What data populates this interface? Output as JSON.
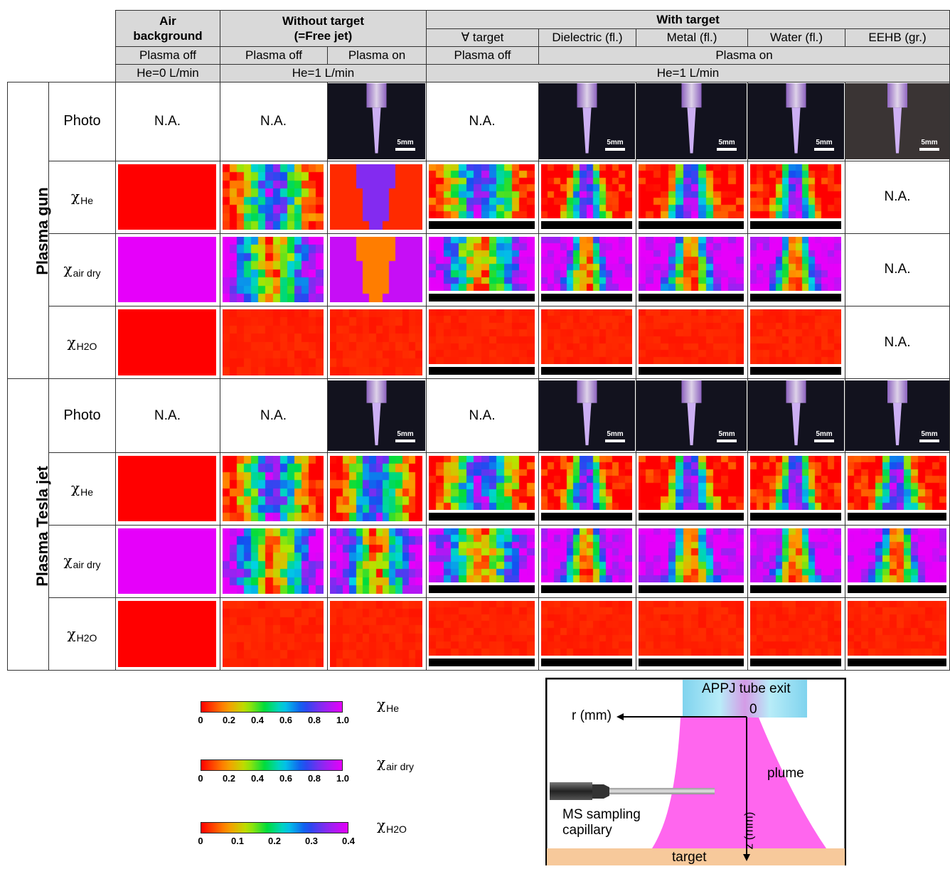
{
  "header": {
    "air_background": "Air\nbackground",
    "without_target": "Without target\n(=Free jet)",
    "with_target": "With target",
    "targets": [
      "∀ target",
      "Dielectric (fl.)",
      "Metal (fl.)",
      "Water (fl.)",
      "EEHB (gr.)"
    ],
    "plasma_off": "Plasma off",
    "plasma_on": "Plasma on",
    "he0": "He=0 L/min",
    "he1": "He=1 L/min"
  },
  "groups": [
    "Plasma gun",
    "Plasma Tesla jet"
  ],
  "row_labels": {
    "photo": "Photo",
    "chi": "χ",
    "he": "He",
    "air": "air dry",
    "h2o": "H2O"
  },
  "na": "N.A.",
  "scale": "5mm",
  "colorbars": [
    {
      "symbol": "χ",
      "sub": "He",
      "ticks": [
        "0",
        "0.2",
        "0.4",
        "0.6",
        "0.8",
        "1.0"
      ],
      "max": 1.0
    },
    {
      "symbol": "χ",
      "sub": "air dry",
      "ticks": [
        "0",
        "0.2",
        "0.4",
        "0.6",
        "0.8",
        "1.0"
      ],
      "max": 1.0
    },
    {
      "symbol": "χ",
      "sub": "H2O",
      "ticks": [
        "0",
        "0.1",
        "0.2",
        "0.3",
        "0.4"
      ],
      "max": 0.4
    }
  ],
  "diagram": {
    "tube_exit": "APPJ tube exit",
    "origin": "0",
    "r_axis": "r (mm)",
    "z_axis": "z (mm)",
    "plume": "plume",
    "capillary_line1": "MS sampling",
    "capillary_line2": "capillary",
    "target": "target"
  },
  "colors": {
    "header_bg": "#d9d9d9",
    "plume": "#ff66ee",
    "tube": "#8fd8ef",
    "target_bg": "#f7c99b"
  }
}
